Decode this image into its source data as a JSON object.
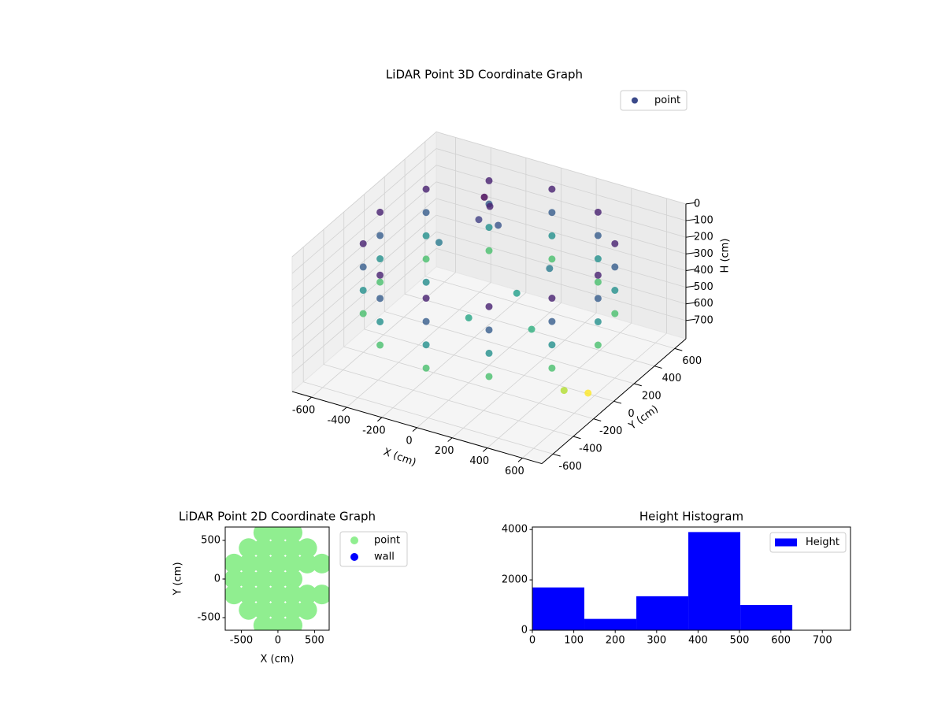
{
  "chart_data": [
    {
      "type": "scatter3d",
      "title": "LiDAR Point 3D Coordinate Graph",
      "xlabel": "X (cm)",
      "ylabel": "Y (cm)",
      "zlabel": "H (cm)",
      "xlim": [
        -710,
        710
      ],
      "ylim": [
        -710,
        710
      ],
      "zlim": [
        0,
        810
      ],
      "z_inverted": true,
      "xticks": [
        -600,
        -400,
        -200,
        0,
        200,
        400,
        600
      ],
      "yticks": [
        -600,
        -400,
        -200,
        0,
        200,
        400,
        600
      ],
      "zticks": [
        0,
        100,
        200,
        300,
        400,
        500,
        600,
        700
      ],
      "colormap": "viridis",
      "legend": "upper right",
      "series": [
        {
          "name": "point",
          "color": "#3b4a8a",
          "x": [
            620,
            537,
            310,
            0,
            -310,
            -537,
            -620,
            -537,
            -310,
            0,
            310,
            537,
            620,
            537,
            310,
            0,
            -310,
            -537,
            -620,
            -537,
            -310,
            0,
            310,
            537,
            620,
            537,
            310,
            0,
            -310,
            -537,
            -620,
            -537,
            -310,
            0,
            310,
            537,
            620,
            537,
            310,
            0,
            -310,
            -537,
            -620,
            -537,
            -310,
            0,
            310,
            537,
            -200,
            -180,
            -220,
            -150,
            100,
            300,
            -300,
            200,
            0,
            -400,
            650,
            600
          ],
          "y": [
            0,
            310,
            537,
            620,
            537,
            310,
            0,
            -310,
            -537,
            -620,
            -537,
            -310,
            0,
            310,
            537,
            620,
            537,
            310,
            0,
            -310,
            -537,
            -620,
            -537,
            -310,
            0,
            310,
            537,
            620,
            537,
            310,
            0,
            -310,
            -537,
            -620,
            -537,
            -310,
            0,
            310,
            537,
            620,
            537,
            310,
            0,
            -310,
            -537,
            -620,
            -537,
            -310,
            300,
            320,
            280,
            350,
            100,
            -100,
            -100,
            250,
            -200,
            200,
            -150,
            -300
          ],
          "z": [
            80,
            80,
            80,
            80,
            80,
            80,
            80,
            80,
            80,
            80,
            80,
            80,
            220,
            220,
            220,
            220,
            220,
            220,
            220,
            220,
            220,
            220,
            220,
            220,
            360,
            360,
            360,
            360,
            360,
            360,
            360,
            360,
            360,
            360,
            360,
            360,
            500,
            500,
            500,
            500,
            500,
            500,
            500,
            500,
            500,
            500,
            500,
            500,
            20,
            80,
            150,
            200,
            400,
            450,
            350,
            300,
            420,
            300,
            700,
            620
          ]
        }
      ]
    },
    {
      "type": "scatter",
      "title": "LiDAR Point 2D Coordinate Graph",
      "xlabel": "X (cm)",
      "ylabel": "Y (cm)",
      "xlim": [
        -720,
        700
      ],
      "ylim": [
        -663,
        673
      ],
      "xticks": [
        -500,
        0,
        500
      ],
      "yticks": [
        -500,
        0,
        500
      ],
      "legend": "outside upper right",
      "series": [
        {
          "name": "point",
          "color": "#90ee90",
          "x": [
            -200,
            0,
            200,
            -400,
            -200,
            0,
            200,
            400,
            -600,
            -400,
            -200,
            0,
            200,
            400,
            600,
            -600,
            -400,
            -200,
            0,
            200,
            -600,
            -400,
            -200,
            0,
            200,
            400,
            600,
            -400,
            -200,
            0,
            200,
            400,
            -200,
            0,
            200
          ],
          "y": [
            600,
            600,
            600,
            400,
            400,
            400,
            400,
            400,
            200,
            200,
            200,
            200,
            200,
            200,
            200,
            0,
            0,
            0,
            0,
            0,
            -200,
            -200,
            -200,
            -200,
            -200,
            -200,
            -200,
            -400,
            -400,
            -400,
            -400,
            -400,
            -600,
            -600,
            -600
          ]
        },
        {
          "name": "wall",
          "color": "#0000ff",
          "x": [],
          "y": []
        }
      ]
    },
    {
      "type": "histogram",
      "title": "Height Histogram",
      "name": "Height",
      "color": "#0000ff",
      "bins": [
        0,
        125.5,
        251,
        376.5,
        502,
        627.5,
        753
      ],
      "counts": [
        1700,
        450,
        1350,
        3900,
        1000,
        5
      ],
      "xlim": [
        0,
        768
      ],
      "ylim": [
        0,
        4100
      ],
      "xticks": [
        0,
        100,
        200,
        300,
        400,
        500,
        600,
        700
      ],
      "yticks": [
        0,
        2000,
        4000
      ],
      "legend": "upper right"
    }
  ]
}
